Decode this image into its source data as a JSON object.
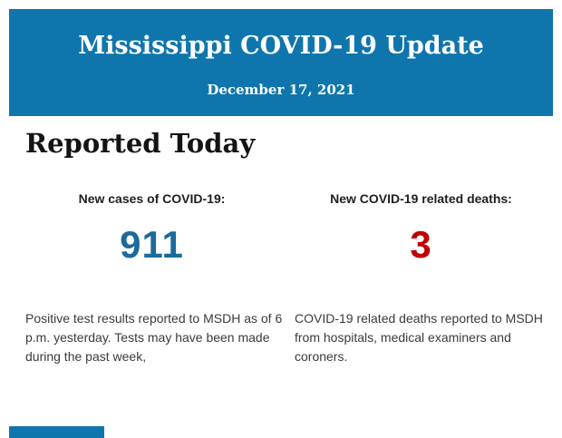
{
  "colors": {
    "banner_blue": "#0e76ad",
    "cases_blue": "#1b6a9c",
    "deaths_red": "#c00000"
  },
  "banner": {
    "title": "Mississippi COVID-19 Update",
    "date": "December 17, 2021"
  },
  "section": {
    "title": "Reported Today"
  },
  "stats": {
    "cases": {
      "label": "New cases of COVID-19:",
      "value": "911",
      "color": "#1b6a9c",
      "description": "Positive test results reported to MSDH as of 6 p.m. yesterday. Tests may have been made during the past week,"
    },
    "deaths": {
      "label": "New COVID-19 related deaths:",
      "value": "3",
      "color": "#c00000",
      "description": "COVID-19 related deaths reported to MSDH from hospitals, medical examiners and coroners."
    }
  }
}
